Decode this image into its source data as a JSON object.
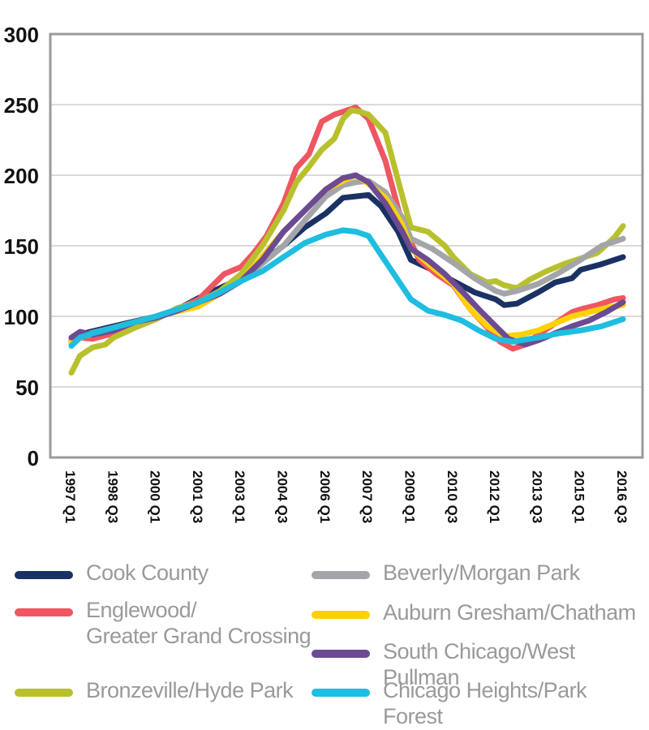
{
  "chart_data": {
    "type": "line",
    "title": "",
    "xlabel": "",
    "ylabel": "",
    "ylim": [
      0,
      300
    ],
    "yticks": [
      0,
      50,
      100,
      150,
      200,
      250,
      300
    ],
    "grid": true,
    "x_tick_labels": [
      "1997 Q1",
      "1998 Q3",
      "2000 Q1",
      "2001 Q3",
      "2003 Q1",
      "2004 Q3",
      "2006 Q1",
      "2007 Q3",
      "2009 Q1",
      "2010 Q3",
      "2012 Q1",
      "2013 Q3",
      "2015 Q1",
      "2016 Q3"
    ],
    "x_range": [
      0,
      13
    ],
    "series": [
      {
        "name": "Cook County",
        "color": "#1a3263",
        "x": [
          0,
          0.3,
          1,
          2,
          2.5,
          3,
          4,
          5,
          5.5,
          6,
          6.4,
          6.7,
          7,
          7.3,
          7.7,
          8,
          8.5,
          9,
          9.5,
          10,
          10.2,
          10.5,
          11,
          11.4,
          11.8,
          12,
          12.5,
          13
        ],
        "y": [
          82,
          88,
          93,
          100,
          105,
          113,
          127,
          150,
          163,
          173,
          184,
          185,
          186,
          178,
          160,
          140,
          133,
          125,
          117,
          112,
          108,
          109,
          117,
          124,
          127,
          133,
          137,
          142
        ]
      },
      {
        "name": "Englewood/\nGreater Grand Crossing",
        "color": "#ef5661",
        "x": [
          0,
          0.2,
          0.5,
          1,
          1.5,
          2,
          2.5,
          3,
          3.6,
          4,
          4.3,
          4.6,
          5,
          5.3,
          5.6,
          5.9,
          6.2,
          6.5,
          6.7,
          7,
          7.4,
          7.8,
          8.2,
          8.6,
          9,
          9.4,
          9.8,
          10.1,
          10.4,
          10.7,
          11,
          11.4,
          11.8,
          12,
          12.4,
          12.8,
          13
        ],
        "y": [
          83,
          85,
          84,
          88,
          93,
          100,
          105,
          112,
          130,
          135,
          145,
          157,
          180,
          205,
          215,
          238,
          243,
          246,
          248,
          240,
          210,
          165,
          140,
          130,
          122,
          105,
          92,
          82,
          77,
          80,
          87,
          95,
          103,
          105,
          108,
          112,
          113
        ]
      },
      {
        "name": "Bronzeville/Hyde Park",
        "color": "#b8c12d",
        "x": [
          0,
          0.2,
          0.5,
          0.8,
          1,
          1.5,
          2,
          2.5,
          3,
          3.5,
          4,
          4.5,
          5,
          5.3,
          5.6,
          5.9,
          6.2,
          6.4,
          6.6,
          6.8,
          7,
          7.4,
          7.8,
          8,
          8.4,
          8.8,
          9,
          9.4,
          9.8,
          10,
          10.2,
          10.5,
          10.8,
          11.2,
          11.6,
          12,
          12.4,
          12.8,
          13
        ],
        "y": [
          60,
          72,
          78,
          80,
          85,
          92,
          98,
          106,
          110,
          118,
          130,
          150,
          175,
          195,
          206,
          218,
          226,
          240,
          246,
          245,
          243,
          230,
          185,
          163,
          160,
          150,
          142,
          130,
          124,
          125,
          122,
          120,
          126,
          132,
          137,
          141,
          145,
          156,
          164
        ]
      },
      {
        "name": "Beverly/Morgan Park",
        "color": "#a3a5a8",
        "x": [
          0,
          0.3,
          1,
          2,
          3,
          4,
          5,
          5.5,
          6,
          6.4,
          6.7,
          7,
          7.4,
          7.8,
          8,
          8.5,
          9,
          9.5,
          10,
          10.2,
          10.5,
          11,
          11.5,
          12,
          12.5,
          13
        ],
        "y": [
          80,
          87,
          92,
          100,
          108,
          125,
          150,
          168,
          185,
          193,
          195,
          196,
          188,
          170,
          155,
          148,
          138,
          127,
          118,
          116,
          118,
          123,
          131,
          140,
          150,
          155
        ]
      },
      {
        "name": "Auburn Gresham/Chatham",
        "color": "#fed103",
        "x": [
          0,
          0.3,
          1,
          2,
          3,
          4,
          5,
          5.5,
          6,
          6.4,
          6.7,
          7,
          7.4,
          7.8,
          8,
          8.5,
          9,
          9.4,
          9.8,
          10.2,
          10.6,
          11,
          11.4,
          11.8,
          12.2,
          12.6,
          13
        ],
        "y": [
          82,
          86,
          92,
          100,
          107,
          125,
          160,
          175,
          190,
          196,
          200,
          194,
          184,
          165,
          148,
          135,
          123,
          105,
          93,
          86,
          87,
          90,
          95,
          100,
          103,
          106,
          108
        ]
      },
      {
        "name": "South Chicago/West Pullman",
        "color": "#6c4b93",
        "x": [
          0,
          0.2,
          0.5,
          1,
          1.5,
          2,
          2.5,
          3,
          3.5,
          4,
          4.5,
          5,
          5.5,
          6,
          6.4,
          6.7,
          7,
          7.4,
          7.8,
          8,
          8.4,
          8.8,
          9.2,
          9.6,
          10,
          10.3,
          10.7,
          11,
          11.4,
          11.8,
          12.2,
          12.6,
          13
        ],
        "y": [
          85,
          89,
          87,
          90,
          96,
          99,
          104,
          110,
          116,
          125,
          140,
          160,
          175,
          190,
          198,
          200,
          195,
          180,
          160,
          148,
          140,
          130,
          118,
          105,
          93,
          84,
          80,
          83,
          88,
          93,
          97,
          103,
          110
        ]
      },
      {
        "name": "Chicago Heights/Park Forest",
        "color": "#1fbddf",
        "x": [
          0,
          0.2,
          0.5,
          1,
          2,
          3,
          3.5,
          4,
          4.5,
          5,
          5.5,
          6,
          6.4,
          6.7,
          7,
          7.2,
          7.6,
          8,
          8.4,
          8.8,
          9.2,
          9.6,
          10,
          10.4,
          11,
          11.5,
          12,
          12.5,
          13
        ],
        "y": [
          79,
          85,
          88,
          92,
          100,
          110,
          117,
          125,
          132,
          142,
          152,
          158,
          161,
          160,
          157,
          148,
          130,
          112,
          104,
          101,
          97,
          90,
          84,
          82,
          85,
          88,
          90,
          93,
          98
        ]
      }
    ]
  },
  "legend": {
    "items": [
      {
        "label": "Cook County",
        "color": "#1a3263"
      },
      {
        "label": "Englewood/\nGreater Grand Crossing",
        "color": "#ef5661"
      },
      {
        "label": "Bronzeville/Hyde Park",
        "color": "#b8c12d"
      },
      {
        "label": "Beverly/Morgan Park",
        "color": "#a3a5a8"
      },
      {
        "label": "Auburn Gresham/Chatham",
        "color": "#fed103"
      },
      {
        "label": "South Chicago/West Pullman",
        "color": "#6c4b93"
      },
      {
        "label": "Chicago Heights/Park Forest",
        "color": "#1fbddf"
      }
    ]
  }
}
